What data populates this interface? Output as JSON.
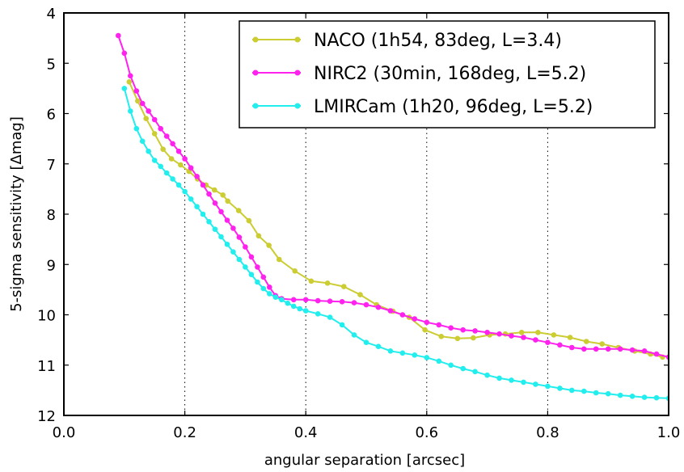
{
  "chart_data": {
    "type": "line",
    "xlabel": "angular separation [arcsec]",
    "ylabel": "5-sigma sensitivity [Δmag]",
    "xlim": [
      0.0,
      1.0
    ],
    "ylim": [
      12,
      4
    ],
    "y_inverted": true,
    "grid": true,
    "legend_position": "top-right",
    "x_ticks": [
      "0.0",
      "0.2",
      "0.4",
      "0.6",
      "0.8",
      "1.0"
    ],
    "y_ticks": [
      "4",
      "5",
      "6",
      "7",
      "8",
      "9",
      "10",
      "11",
      "12"
    ],
    "series": [
      {
        "name": "NACO (1h54, 83deg, L=3.4)",
        "color": "#cccc33",
        "x": [
          0.108,
          0.122,
          0.136,
          0.15,
          0.164,
          0.178,
          0.193,
          0.207,
          0.221,
          0.235,
          0.249,
          0.263,
          0.271,
          0.289,
          0.306,
          0.322,
          0.339,
          0.356,
          0.382,
          0.409,
          0.436,
          0.463,
          0.49,
          0.517,
          0.544,
          0.571,
          0.597,
          0.624,
          0.651,
          0.677,
          0.704,
          0.73,
          0.757,
          0.784,
          0.81,
          0.837,
          0.864,
          0.89,
          0.917,
          0.944,
          0.97,
          0.99
        ],
        "y": [
          5.37,
          5.75,
          6.1,
          6.4,
          6.71,
          6.9,
          7.02,
          7.15,
          7.3,
          7.42,
          7.52,
          7.62,
          7.74,
          7.93,
          8.13,
          8.43,
          8.62,
          8.9,
          9.13,
          9.33,
          9.37,
          9.44,
          9.6,
          9.8,
          9.93,
          10.05,
          10.3,
          10.43,
          10.47,
          10.46,
          10.4,
          10.38,
          10.35,
          10.35,
          10.4,
          10.45,
          10.53,
          10.58,
          10.65,
          10.72,
          10.78,
          10.84
        ]
      },
      {
        "name": "NIRC2 (30min, 168deg, L=5.2)",
        "color": "#ff22ee",
        "x": [
          0.09,
          0.1,
          0.11,
          0.12,
          0.13,
          0.14,
          0.15,
          0.16,
          0.17,
          0.18,
          0.19,
          0.2,
          0.21,
          0.22,
          0.23,
          0.24,
          0.25,
          0.26,
          0.27,
          0.28,
          0.29,
          0.3,
          0.31,
          0.32,
          0.33,
          0.34,
          0.35,
          0.36,
          0.38,
          0.4,
          0.42,
          0.44,
          0.46,
          0.48,
          0.5,
          0.52,
          0.54,
          0.56,
          0.58,
          0.6,
          0.62,
          0.64,
          0.66,
          0.68,
          0.7,
          0.72,
          0.74,
          0.76,
          0.78,
          0.8,
          0.82,
          0.84,
          0.86,
          0.88,
          0.9,
          0.92,
          0.94,
          0.96,
          0.98,
          1.0
        ],
        "y": [
          4.45,
          4.8,
          5.25,
          5.55,
          5.8,
          5.95,
          6.12,
          6.3,
          6.45,
          6.6,
          6.75,
          6.9,
          7.08,
          7.25,
          7.42,
          7.6,
          7.78,
          7.95,
          8.12,
          8.28,
          8.46,
          8.65,
          8.85,
          9.05,
          9.25,
          9.45,
          9.62,
          9.68,
          9.7,
          9.7,
          9.72,
          9.73,
          9.74,
          9.76,
          9.8,
          9.85,
          9.92,
          10.0,
          10.08,
          10.15,
          10.2,
          10.26,
          10.3,
          10.32,
          10.35,
          10.38,
          10.42,
          10.45,
          10.5,
          10.55,
          10.6,
          10.65,
          10.68,
          10.68,
          10.68,
          10.68,
          10.7,
          10.72,
          10.78,
          10.84
        ]
      },
      {
        "name": "LMIRCam (1h20, 96deg, L=5.2)",
        "color": "#22eeee",
        "x": [
          0.1,
          0.11,
          0.12,
          0.13,
          0.14,
          0.15,
          0.16,
          0.17,
          0.18,
          0.19,
          0.2,
          0.21,
          0.22,
          0.23,
          0.24,
          0.25,
          0.26,
          0.27,
          0.28,
          0.29,
          0.3,
          0.31,
          0.32,
          0.33,
          0.34,
          0.35,
          0.36,
          0.37,
          0.38,
          0.39,
          0.4,
          0.42,
          0.44,
          0.46,
          0.48,
          0.5,
          0.52,
          0.54,
          0.56,
          0.58,
          0.6,
          0.62,
          0.64,
          0.66,
          0.68,
          0.7,
          0.72,
          0.74,
          0.76,
          0.78,
          0.8,
          0.82,
          0.84,
          0.86,
          0.88,
          0.9,
          0.92,
          0.94,
          0.96,
          0.98,
          1.0
        ],
        "y": [
          5.5,
          5.95,
          6.3,
          6.55,
          6.75,
          6.93,
          7.05,
          7.18,
          7.3,
          7.42,
          7.55,
          7.7,
          7.85,
          8.0,
          8.15,
          8.3,
          8.45,
          8.6,
          8.75,
          8.9,
          9.05,
          9.2,
          9.35,
          9.48,
          9.58,
          9.65,
          9.7,
          9.77,
          9.83,
          9.88,
          9.92,
          9.98,
          10.05,
          10.2,
          10.4,
          10.55,
          10.63,
          10.72,
          10.76,
          10.8,
          10.85,
          10.92,
          11.0,
          11.07,
          11.13,
          11.2,
          11.26,
          11.3,
          11.34,
          11.38,
          11.42,
          11.46,
          11.5,
          11.52,
          11.55,
          11.57,
          11.6,
          11.62,
          11.64,
          11.65,
          11.66
        ]
      }
    ]
  }
}
